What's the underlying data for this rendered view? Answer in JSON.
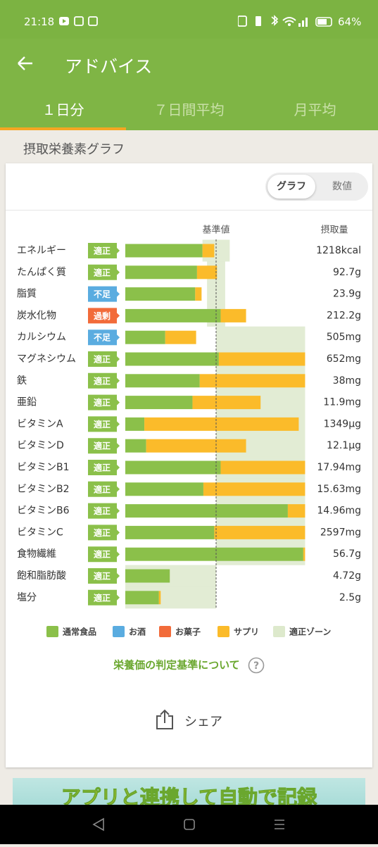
{
  "status_bar": {
    "time": "21:18",
    "battery": "64%"
  },
  "header": {
    "title": "アドバイス"
  },
  "tabs": [
    "１日分",
    "７日間平均",
    "月平均"
  ],
  "section_title": "摂取栄養素グラフ",
  "toggle": [
    "グラフ",
    "数値"
  ],
  "chart_data": {
    "type": "bar",
    "orientation": "horizontal",
    "stacked": true,
    "reference_label": "基準値",
    "reference": 100,
    "value_header": "摂取量",
    "xlim": [
      0,
      200
    ],
    "categories": [
      "エネルギー",
      "たんぱく質",
      "脂質",
      "炭水化物",
      "カルシウム",
      "マグネシウム",
      "鉄",
      "亜鉛",
      "ビタミンA",
      "ビタミンD",
      "ビタミンB1",
      "ビタミンB2",
      "ビタミンB6",
      "ビタミンC",
      "食物繊維",
      "飽和脂肪酸",
      "塩分"
    ],
    "status": [
      "適正",
      "適正",
      "不足",
      "過剰",
      "不足",
      "適正",
      "適正",
      "適正",
      "適正",
      "適正",
      "適正",
      "適正",
      "適正",
      "適正",
      "適正",
      "適正",
      "適正"
    ],
    "status_colors": [
      "#8bc04a",
      "#8bc04a",
      "#5aace0",
      "#f26b3a",
      "#5aace0",
      "#8bc04a",
      "#8bc04a",
      "#8bc04a",
      "#8bc04a",
      "#8bc04a",
      "#8bc04a",
      "#8bc04a",
      "#8bc04a",
      "#8bc04a",
      "#8bc04a",
      "#8bc04a",
      "#8bc04a"
    ],
    "intake_labels": [
      "1218kcal",
      "92.7g",
      "23.9g",
      "212.2g",
      "505mg",
      "652mg",
      "38mg",
      "11.9mg",
      "1349μg",
      "12.1μg",
      "17.94mg",
      "15.63mg",
      "14.96mg",
      "2597mg",
      "56.7g",
      "4.72g",
      "2.5g"
    ],
    "series": [
      {
        "name": "通常食品",
        "color": "#8bc04a",
        "values": [
          85,
          79,
          77,
          105,
          44,
          103,
          82,
          74,
          21,
          23,
          105,
          86,
          179,
          98,
          196,
          49,
          37
        ]
      },
      {
        "name": "お酒",
        "color": "#5aace0",
        "values": [
          0,
          0,
          0,
          0,
          0,
          0,
          0,
          0,
          0,
          0,
          0,
          0,
          0,
          0,
          0,
          0,
          0
        ]
      },
      {
        "name": "お菓子",
        "color": "#f26b3a",
        "values": [
          0,
          0,
          0,
          0,
          0,
          0,
          0,
          0,
          0,
          0,
          0,
          0,
          0,
          0,
          0,
          0,
          0
        ]
      },
      {
        "name": "サプリ",
        "color": "#fbbb2a",
        "values": [
          13,
          22,
          7,
          28,
          34,
          95,
          116,
          75,
          170,
          110,
          93,
          112,
          19,
          100,
          2,
          0,
          2
        ]
      }
    ],
    "zone": {
      "name": "適正ゾーン",
      "color": "#dde9cc",
      "low": [
        85,
        90,
        90,
        90,
        100,
        100,
        100,
        100,
        100,
        100,
        100,
        100,
        100,
        100,
        100,
        0,
        0
      ],
      "high": [
        115,
        110,
        110,
        110,
        198,
        198,
        198,
        198,
        198,
        198,
        198,
        198,
        198,
        198,
        198,
        100,
        100
      ]
    }
  },
  "link": "栄養価の判定基準について",
  "share": "シェア",
  "banner": "アプリと連携して自動で記録"
}
